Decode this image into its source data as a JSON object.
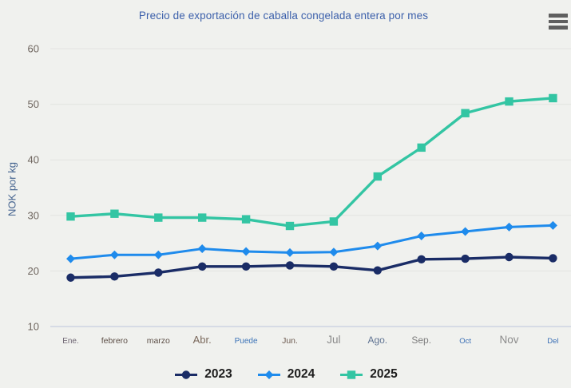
{
  "page": {
    "background": "#f0f1ee"
  },
  "colors": {
    "title": "#3c60ab",
    "y_axis_title": "#44638f",
    "y_tick": "#6e655e",
    "grid": "#e3e4e1",
    "axis_line": "#c7cee0",
    "legend_text": "#1c1c1c",
    "menu_icon": "#5f5f5f"
  },
  "header": {
    "menu_icon": "hamburger-context-menu"
  },
  "chart_data": {
    "type": "line",
    "title": "Precio de exportación de caballa congelada entera por mes",
    "xlabel": "",
    "ylabel": "NOK por kg",
    "ylim": [
      10,
      60
    ],
    "yticks": [
      10,
      20,
      30,
      40,
      50,
      60
    ],
    "grid": true,
    "legend_position": "bottom",
    "x_labels": [
      {
        "text": "Ene.",
        "color": "#6f6673",
        "size": 10
      },
      {
        "text": "febrero",
        "color": "#5d4f47",
        "size": 10.5
      },
      {
        "text": "marzo",
        "color": "#5d4f47",
        "size": 10.5
      },
      {
        "text": "Abr.",
        "color": "#7b695c",
        "size": 13
      },
      {
        "text": "Puede",
        "color": "#3d74b8",
        "size": 10
      },
      {
        "text": "Jun.",
        "color": "#6d5b50",
        "size": 10.5
      },
      {
        "text": "Jul",
        "color": "#8a8a8a",
        "size": 13.5
      },
      {
        "text": "Ago.",
        "color": "#5f7392",
        "size": 12
      },
      {
        "text": "Sep.",
        "color": "#7e7e7e",
        "size": 12
      },
      {
        "text": "Oct",
        "color": "#3a6fb5",
        "size": 9.5
      },
      {
        "text": "Nov",
        "color": "#8b8b8b",
        "size": 13.5
      },
      {
        "text": "Del",
        "color": "#3a6fb5",
        "size": 9.5
      }
    ],
    "series": [
      {
        "name": "2023",
        "color": "#1a2c66",
        "marker": "circle",
        "line_width": 3.4,
        "values": [
          18.8,
          19.0,
          19.7,
          20.8,
          20.8,
          21.0,
          20.8,
          20.1,
          22.1,
          22.2,
          22.5,
          22.3
        ]
      },
      {
        "name": "2024",
        "color": "#1f8bec",
        "marker": "diamond",
        "line_width": 3.0,
        "values": [
          22.2,
          22.9,
          22.9,
          24.0,
          23.5,
          23.3,
          23.4,
          24.5,
          26.3,
          27.1,
          27.9,
          28.2
        ]
      },
      {
        "name": "2025",
        "color": "#33c5a3",
        "marker": "square",
        "line_width": 3.4,
        "values": [
          29.8,
          30.3,
          29.6,
          29.6,
          29.3,
          28.1,
          28.9,
          37.0,
          42.2,
          48.4,
          50.5,
          51.1
        ]
      }
    ]
  }
}
